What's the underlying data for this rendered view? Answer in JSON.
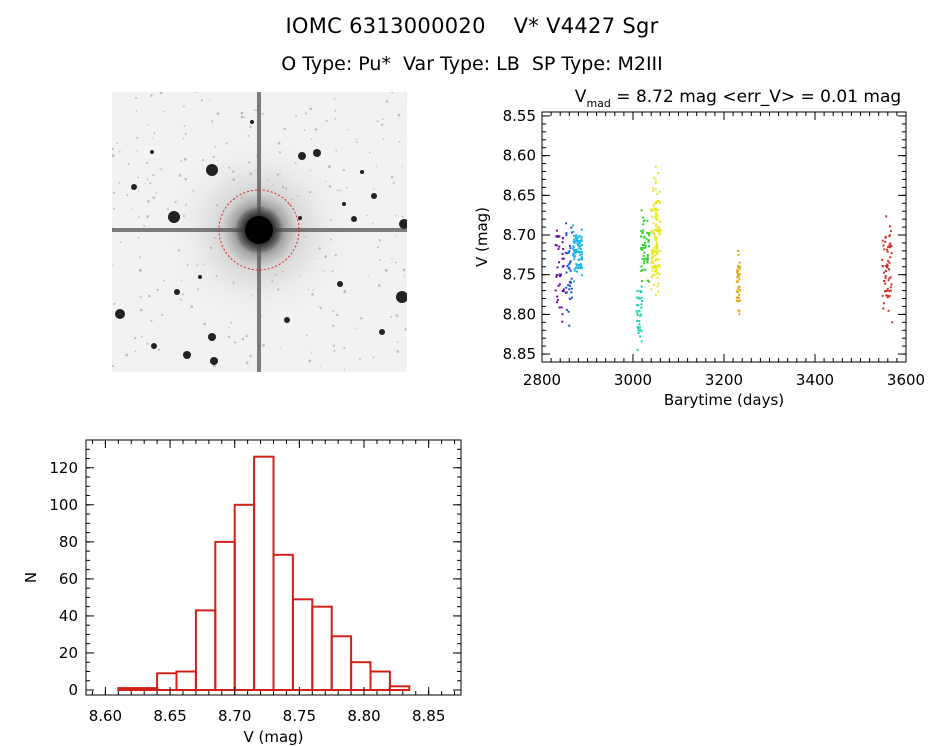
{
  "header": {
    "title_line1": "IOMC 6313000020    V* V4427 Sgr",
    "title_line2": "O Type: Pu*  Var Type: LB  SP Type: M2III"
  },
  "colors": {
    "histogram_bar": "#d0201a",
    "finder_circle": "#e02020"
  },
  "chart_data": [
    {
      "type": "scatter",
      "title": "V_mad = 8.72 mag <err_V> = 0.01 mag",
      "title_main": "V",
      "title_sub": "mad",
      "title_rest": " = 8.72 mag <err_V> = 0.01 mag",
      "xlabel": "Barytime (days)",
      "ylabel": "V (mag)",
      "xlim": [
        2800,
        3600
      ],
      "ylim": [
        8.86,
        8.545
      ],
      "y_inverted": true,
      "xticks": [
        "2800",
        "3000",
        "3200",
        "3400",
        "3600"
      ],
      "yticks": [
        "8.55",
        "8.60",
        "8.65",
        "8.70",
        "8.75",
        "8.80",
        "8.85"
      ],
      "grid": false,
      "series": [
        {
          "color": "#6a0dad",
          "x_range": [
            2830,
            2848
          ],
          "y_min": 8.655,
          "y_max": 8.81,
          "y_center": 8.74,
          "count": 40
        },
        {
          "color": "#1f4fd8",
          "x_range": [
            2852,
            2866
          ],
          "y_min": 8.68,
          "y_max": 8.82,
          "y_center": 8.75,
          "count": 40
        },
        {
          "color": "#19b7e8",
          "x_range": [
            2868,
            2888
          ],
          "y_min": 8.685,
          "y_max": 8.76,
          "y_center": 8.725,
          "count": 90
        },
        {
          "color": "#19d6b0",
          "x_range": [
            3008,
            3020
          ],
          "y_min": 8.75,
          "y_max": 8.845,
          "y_center": 8.8,
          "count": 35
        },
        {
          "color": "#2fd12f",
          "x_range": [
            3018,
            3036
          ],
          "y_min": 8.665,
          "y_max": 8.77,
          "y_center": 8.72,
          "count": 50
        },
        {
          "color": "#e8e81a",
          "x_range": [
            3040,
            3060
          ],
          "y_min": 8.59,
          "y_max": 8.79,
          "y_center": 8.7,
          "count": 130
        },
        {
          "color": "#e0a81a",
          "x_range": [
            3228,
            3236
          ],
          "y_min": 8.72,
          "y_max": 8.81,
          "y_center": 8.76,
          "count": 40
        },
        {
          "color": "#d0302a",
          "x_range": [
            3548,
            3570
          ],
          "y_min": 8.67,
          "y_max": 8.81,
          "y_center": 8.74,
          "count": 60
        }
      ]
    },
    {
      "type": "bar",
      "histogram": true,
      "xlabel": "V (mag)",
      "ylabel": "N",
      "xlim": [
        8.585,
        8.875
      ],
      "ylim": [
        0,
        135
      ],
      "xticks": [
        "8.60",
        "8.65",
        "8.70",
        "8.75",
        "8.80",
        "8.85"
      ],
      "yticks": [
        "0",
        "20",
        "40",
        "60",
        "80",
        "100",
        "120"
      ],
      "bin_width": 0.015,
      "bin_edges_start": 8.595,
      "values": [
        0,
        1,
        1,
        9,
        10,
        43,
        80,
        100,
        126,
        73,
        49,
        45,
        29,
        15,
        10,
        2
      ],
      "grid": false
    }
  ]
}
